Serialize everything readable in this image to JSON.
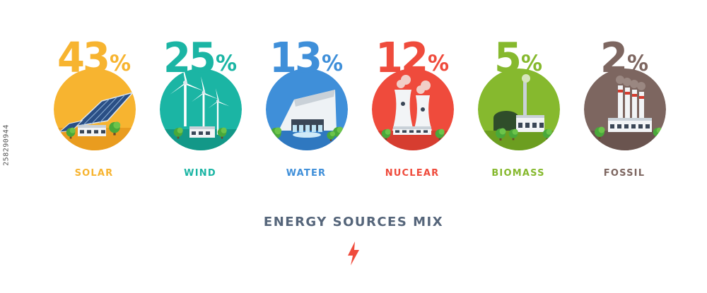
{
  "side_id": "258290944",
  "footer": {
    "title": "ENERGY SOURCES MIX",
    "icon": "lightning-bolt-icon",
    "icon_color": "#ef4b3c"
  },
  "chart_data": {
    "type": "bar",
    "title": "ENERGY SOURCES MIX",
    "unit": "%",
    "categories": [
      "SOLAR",
      "WIND",
      "WATER",
      "NUCLEAR",
      "BIOMASS",
      "FOSSIL"
    ],
    "values": [
      43,
      25,
      13,
      12,
      5,
      2
    ],
    "colors": [
      "#f7b430",
      "#1bb5a4",
      "#3f8fd9",
      "#ef4b3c",
      "#86b92e",
      "#7d6660"
    ],
    "icons": [
      "solar-plant-icon",
      "wind-farm-icon",
      "hydro-dam-icon",
      "nuclear-plant-icon",
      "biomass-plant-icon",
      "fossil-plant-icon"
    ]
  }
}
